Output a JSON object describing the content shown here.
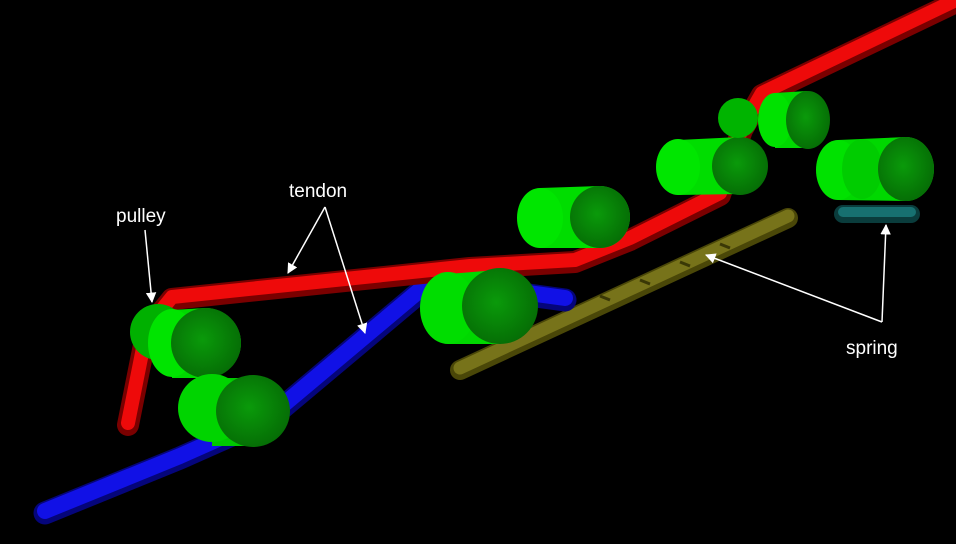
{
  "labels": {
    "pulley": "pulley",
    "tendon": "tendon",
    "spring": "spring"
  },
  "colors": {
    "background": "#000000",
    "tendon_red": "#e00000",
    "tendon_blue": "#0a0ae0",
    "pulley_green": "#00dd00",
    "spring_yellow": "#6e6a10",
    "spring_teal": "#0f5a5a",
    "annotation": "#ffffff"
  }
}
